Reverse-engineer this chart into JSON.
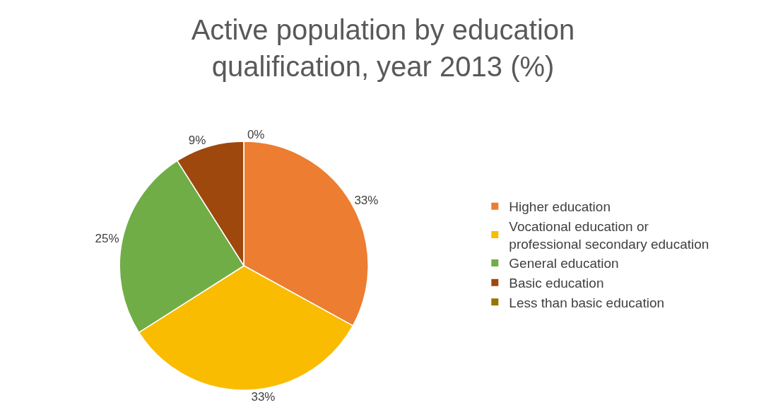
{
  "chart_data": {
    "type": "pie",
    "title": "Active population by education qualification, year 2013 (%)",
    "categories": [
      "Higher education",
      "Vocational education or professional secondary education",
      "General education",
      "Basic education",
      "Less than basic education"
    ],
    "values": [
      33,
      33,
      25,
      9,
      0
    ],
    "colors": [
      "#ed7d31",
      "#f9bc00",
      "#70ad47",
      "#9e480e",
      "#997300"
    ],
    "value_labels": [
      "33%",
      "33%",
      "25%",
      "9%",
      "0%"
    ],
    "legend": "right"
  }
}
